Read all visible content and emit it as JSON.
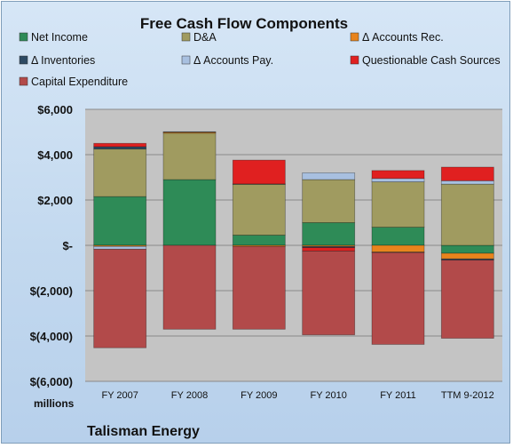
{
  "company": "Talisman Energy",
  "y_unit_label": "millions",
  "chart_data": {
    "type": "bar",
    "stacked": true,
    "title": "Free Cash Flow Components",
    "xlabel": "",
    "ylabel": "",
    "ylim": [
      -6000,
      6000
    ],
    "y_ticks": [
      6000,
      4000,
      2000,
      0,
      -2000,
      -4000,
      -6000
    ],
    "y_tick_labels": [
      "$6,000",
      "$4,000",
      "$2,000",
      "$-",
      "$(2,000)",
      "$(4,000)",
      "$(6,000)"
    ],
    "grid": true,
    "legend_position": "top",
    "categories": [
      "FY 2007",
      "FY 2008",
      "FY 2009",
      "FY 2010",
      "FY 2011",
      "TTM 9-2012"
    ],
    "series": [
      {
        "name": "Net Income",
        "color": "#2e8b57",
        "values": [
          2150,
          2900,
          450,
          1000,
          800,
          -350
        ]
      },
      {
        "name": "D&A",
        "color": "#a09b60",
        "values": [
          2100,
          2050,
          2250,
          1900,
          2000,
          2700
        ]
      },
      {
        "name": "Δ Accounts Rec.",
        "color": "#e8841d",
        "values": [
          -50,
          50,
          -50,
          -50,
          -300,
          -250
        ]
      },
      {
        "name": "Δ Inventories",
        "color": "#2d4a63",
        "values": [
          100,
          10,
          10,
          -50,
          -20,
          -50
        ]
      },
      {
        "name": "Δ Accounts Pay.",
        "color": "#a8c0e0",
        "values": [
          -120,
          0,
          0,
          300,
          150,
          150
        ]
      },
      {
        "name": "Questionable Cash Sources",
        "color": "#e02020",
        "values": [
          150,
          0,
          1050,
          -150,
          350,
          600
        ]
      },
      {
        "name": "Capital Expenditure",
        "color": "#b24a4a",
        "values": [
          -4350,
          -3700,
          -3650,
          -3700,
          -4050,
          -3450
        ]
      }
    ]
  }
}
